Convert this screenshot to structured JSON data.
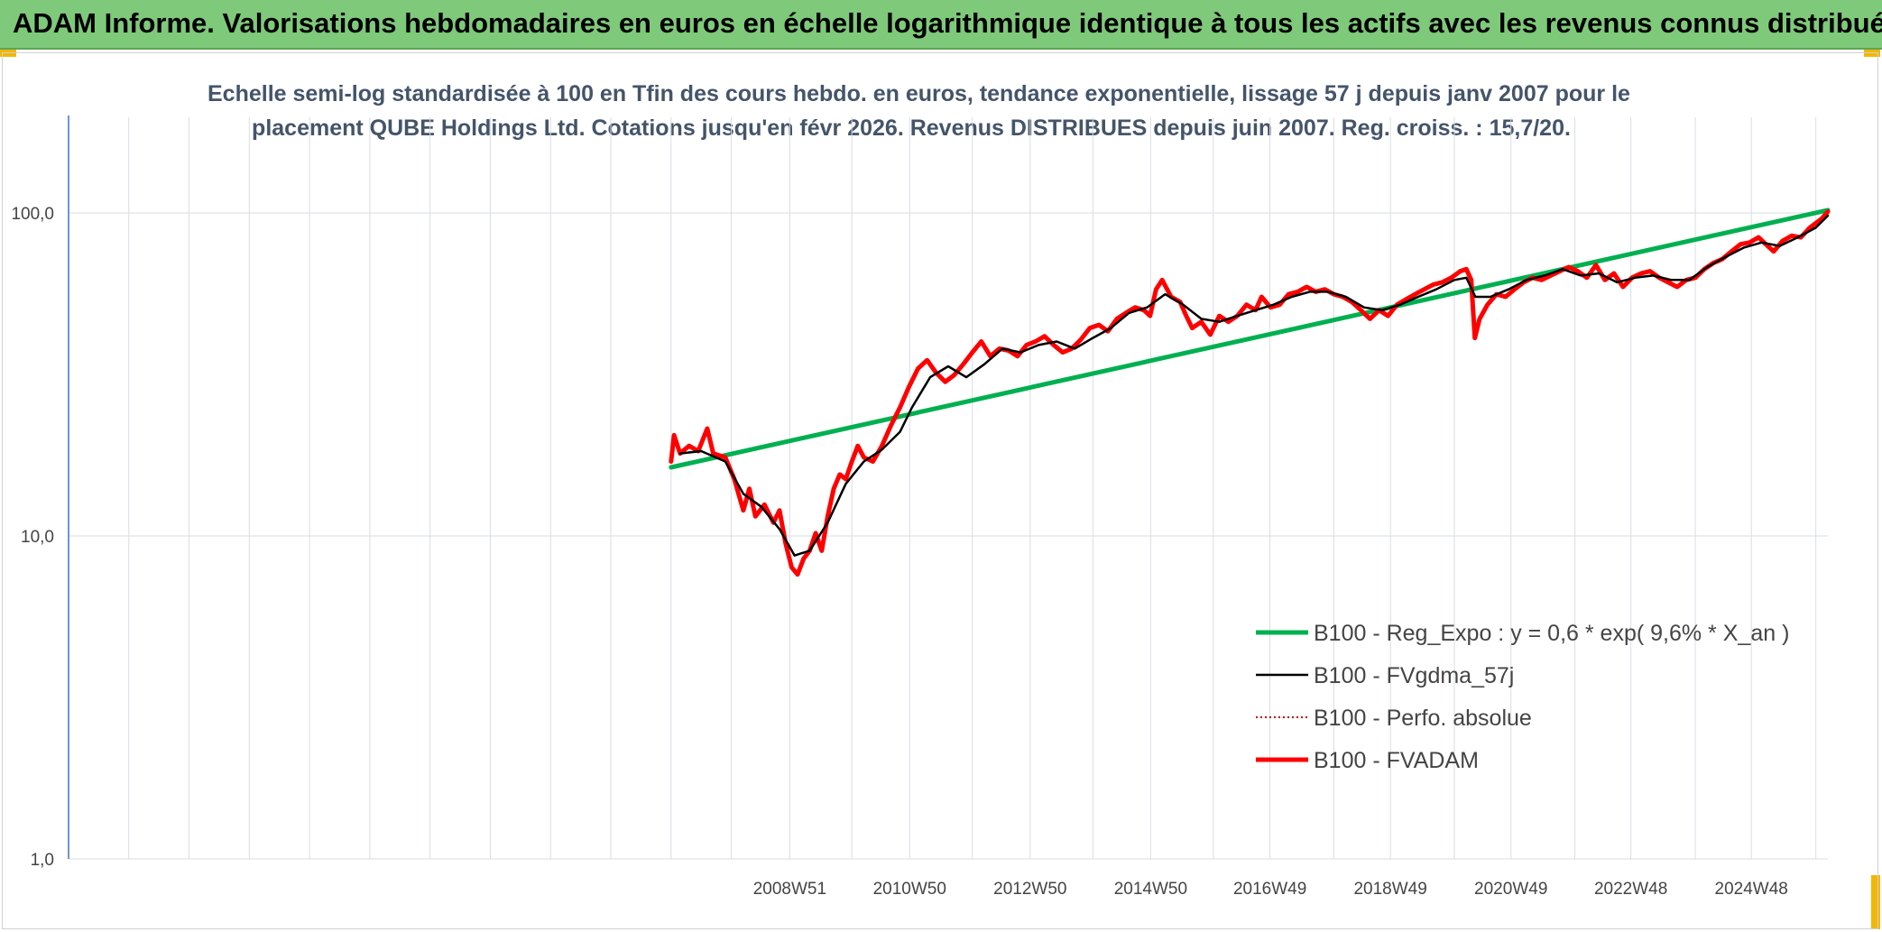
{
  "banner": {
    "title": "ADAM Informe. Valorisations hebdomadaires en euros en échelle logarithmique identique à tous les actifs avec les revenus connus distribués",
    "bg_color": "#7fc97a",
    "accent_corner_color": "#f2b705"
  },
  "chart_data": {
    "type": "line",
    "subtitle_lines": [
      "Echelle semi-log standardisée à 100 en Tfin des cours hebdo. en euros, tendance exponentielle, lissage 57 j depuis janv 2007 pour le",
      "placement QUBE Holdings Ltd. Cotations jusqu'en févr 2026. Revenus DISTRIBUES depuis juin 2007. Reg. croiss. : 15,7/20."
    ],
    "y_scale": "log",
    "ylim": [
      1,
      100
    ],
    "y_ticks": [
      {
        "value": 100,
        "label": "100,0"
      },
      {
        "value": 10,
        "label": "10,0"
      },
      {
        "value": 1,
        "label": "1,0"
      }
    ],
    "x_range": [
      1997.0,
      2026.2
    ],
    "x_ticks": [
      {
        "value": 2008.97,
        "label": "2008W51"
      },
      {
        "value": 2010.96,
        "label": "2010W50"
      },
      {
        "value": 2012.96,
        "label": "2012W50"
      },
      {
        "value": 2014.96,
        "label": "2014W50"
      },
      {
        "value": 2016.94,
        "label": "2016W49"
      },
      {
        "value": 2018.94,
        "label": "2018W49"
      },
      {
        "value": 2020.94,
        "label": "2020W49"
      },
      {
        "value": 2022.93,
        "label": "2022W48"
      },
      {
        "value": 2024.93,
        "label": "2024W48"
      }
    ],
    "x_gridlines": [
      1998.0,
      1999.0,
      2000.0,
      2001.0,
      2002.0,
      2003.0,
      2004.0,
      2005.0,
      2006.0,
      2007.0,
      2008.0,
      2008.97,
      2010.0,
      2010.96,
      2012.0,
      2012.96,
      2014.0,
      2014.96,
      2016.0,
      2016.94,
      2018.0,
      2018.94,
      2020.0,
      2020.94,
      2022.0,
      2022.93,
      2024.0,
      2024.93,
      2026.0
    ],
    "grid": true,
    "legend_position": "bottom-right",
    "series": [
      {
        "name": "B100 - Reg_Expo : y = 0,6 * exp( 9,6% *  X_an )",
        "color": "#00b050",
        "style": "solid-thick",
        "points": [
          [
            2007.0,
            16.3
          ],
          [
            2026.2,
            102.0
          ]
        ]
      },
      {
        "name": "B100 - FVgdma_57j",
        "color": "#000000",
        "style": "solid-thin",
        "points": [
          [
            2007.15,
            18.0
          ],
          [
            2007.5,
            18.3
          ],
          [
            2007.9,
            17.0
          ],
          [
            2008.2,
            13.5
          ],
          [
            2008.5,
            12.3
          ],
          [
            2008.8,
            10.5
          ],
          [
            2009.05,
            8.7
          ],
          [
            2009.3,
            9.0
          ],
          [
            2009.6,
            11.0
          ],
          [
            2009.9,
            14.5
          ],
          [
            2010.2,
            17.0
          ],
          [
            2010.5,
            18.5
          ],
          [
            2010.8,
            21.0
          ],
          [
            2011.0,
            25.0
          ],
          [
            2011.3,
            31.0
          ],
          [
            2011.6,
            33.5
          ],
          [
            2011.9,
            31.0
          ],
          [
            2012.2,
            34.0
          ],
          [
            2012.5,
            38.0
          ],
          [
            2012.8,
            37.0
          ],
          [
            2013.1,
            39.0
          ],
          [
            2013.4,
            40.0
          ],
          [
            2013.7,
            38.0
          ],
          [
            2014.0,
            41.0
          ],
          [
            2014.3,
            44.0
          ],
          [
            2014.6,
            49.0
          ],
          [
            2014.9,
            51.0
          ],
          [
            2015.2,
            56.0
          ],
          [
            2015.5,
            52.0
          ],
          [
            2015.8,
            47.0
          ],
          [
            2016.1,
            46.0
          ],
          [
            2016.4,
            48.0
          ],
          [
            2016.7,
            50.0
          ],
          [
            2017.0,
            52.0
          ],
          [
            2017.3,
            55.0
          ],
          [
            2017.6,
            57.0
          ],
          [
            2017.9,
            57.0
          ],
          [
            2018.2,
            55.0
          ],
          [
            2018.5,
            51.0
          ],
          [
            2018.8,
            50.0
          ],
          [
            2019.1,
            52.0
          ],
          [
            2019.4,
            55.0
          ],
          [
            2019.7,
            58.0
          ],
          [
            2020.0,
            62.0
          ],
          [
            2020.2,
            63.0
          ],
          [
            2020.35,
            55.0
          ],
          [
            2020.6,
            55.0
          ],
          [
            2020.9,
            58.0
          ],
          [
            2021.2,
            62.0
          ],
          [
            2021.5,
            64.0
          ],
          [
            2021.8,
            67.0
          ],
          [
            2022.1,
            64.0
          ],
          [
            2022.4,
            65.0
          ],
          [
            2022.7,
            61.0
          ],
          [
            2023.0,
            63.0
          ],
          [
            2023.3,
            64.0
          ],
          [
            2023.6,
            62.0
          ],
          [
            2023.9,
            62.0
          ],
          [
            2024.2,
            68.0
          ],
          [
            2024.5,
            73.0
          ],
          [
            2024.8,
            78.0
          ],
          [
            2025.1,
            81.0
          ],
          [
            2025.4,
            79.0
          ],
          [
            2025.7,
            84.0
          ],
          [
            2026.0,
            90.0
          ],
          [
            2026.2,
            98.0
          ]
        ]
      },
      {
        "name": "B100 - Perfo. absolue",
        "color": "#c00000",
        "style": "dotted",
        "points": []
      },
      {
        "name": "B100 - FVADAM",
        "color": "#ff0000",
        "style": "solid-thick",
        "points": [
          [
            2007.0,
            17.0
          ],
          [
            2007.05,
            20.5
          ],
          [
            2007.15,
            18.0
          ],
          [
            2007.3,
            19.0
          ],
          [
            2007.45,
            18.3
          ],
          [
            2007.6,
            21.5
          ],
          [
            2007.7,
            18.0
          ],
          [
            2007.9,
            17.5
          ],
          [
            2008.05,
            15.0
          ],
          [
            2008.2,
            12.0
          ],
          [
            2008.3,
            14.0
          ],
          [
            2008.4,
            11.5
          ],
          [
            2008.55,
            12.5
          ],
          [
            2008.7,
            11.0
          ],
          [
            2008.8,
            12.0
          ],
          [
            2008.9,
            9.5
          ],
          [
            2009.0,
            8.0
          ],
          [
            2009.1,
            7.6
          ],
          [
            2009.2,
            8.5
          ],
          [
            2009.3,
            9.0
          ],
          [
            2009.4,
            10.2
          ],
          [
            2009.5,
            9.0
          ],
          [
            2009.6,
            11.5
          ],
          [
            2009.7,
            14.0
          ],
          [
            2009.8,
            15.5
          ],
          [
            2009.9,
            15.0
          ],
          [
            2010.0,
            17.0
          ],
          [
            2010.1,
            19.0
          ],
          [
            2010.2,
            17.5
          ],
          [
            2010.35,
            17.0
          ],
          [
            2010.5,
            19.0
          ],
          [
            2010.65,
            22.0
          ],
          [
            2010.8,
            25.0
          ],
          [
            2010.95,
            29.0
          ],
          [
            2011.1,
            33.0
          ],
          [
            2011.25,
            35.0
          ],
          [
            2011.4,
            32.0
          ],
          [
            2011.55,
            30.0
          ],
          [
            2011.7,
            31.5
          ],
          [
            2011.85,
            34.0
          ],
          [
            2012.0,
            37.0
          ],
          [
            2012.15,
            40.0
          ],
          [
            2012.3,
            36.0
          ],
          [
            2012.45,
            38.0
          ],
          [
            2012.6,
            37.5
          ],
          [
            2012.75,
            36.0
          ],
          [
            2012.9,
            39.0
          ],
          [
            2013.05,
            40.0
          ],
          [
            2013.2,
            41.5
          ],
          [
            2013.35,
            39.0
          ],
          [
            2013.5,
            37.0
          ],
          [
            2013.65,
            38.0
          ],
          [
            2013.8,
            40.5
          ],
          [
            2013.95,
            44.0
          ],
          [
            2014.1,
            45.0
          ],
          [
            2014.25,
            43.0
          ],
          [
            2014.4,
            47.0
          ],
          [
            2014.55,
            49.0
          ],
          [
            2014.7,
            51.0
          ],
          [
            2014.85,
            50.0
          ],
          [
            2014.95,
            48.0
          ],
          [
            2015.05,
            58.0
          ],
          [
            2015.15,
            62.0
          ],
          [
            2015.3,
            55.0
          ],
          [
            2015.45,
            53.0
          ],
          [
            2015.55,
            48.0
          ],
          [
            2015.65,
            44.0
          ],
          [
            2015.8,
            46.0
          ],
          [
            2015.95,
            42.0
          ],
          [
            2016.1,
            48.0
          ],
          [
            2016.25,
            46.0
          ],
          [
            2016.4,
            48.0
          ],
          [
            2016.55,
            52.0
          ],
          [
            2016.7,
            50.0
          ],
          [
            2016.8,
            55.0
          ],
          [
            2016.95,
            51.0
          ],
          [
            2017.1,
            52.0
          ],
          [
            2017.25,
            56.0
          ],
          [
            2017.4,
            57.0
          ],
          [
            2017.55,
            59.0
          ],
          [
            2017.7,
            57.0
          ],
          [
            2017.85,
            58.0
          ],
          [
            2018.0,
            56.0
          ],
          [
            2018.15,
            55.0
          ],
          [
            2018.3,
            53.0
          ],
          [
            2018.45,
            50.0
          ],
          [
            2018.6,
            47.0
          ],
          [
            2018.75,
            50.0
          ],
          [
            2018.9,
            48.0
          ],
          [
            2019.05,
            52.0
          ],
          [
            2019.2,
            54.0
          ],
          [
            2019.35,
            56.0
          ],
          [
            2019.5,
            58.0
          ],
          [
            2019.65,
            60.0
          ],
          [
            2019.8,
            61.0
          ],
          [
            2019.95,
            63.0
          ],
          [
            2020.1,
            66.0
          ],
          [
            2020.2,
            67.0
          ],
          [
            2020.28,
            62.0
          ],
          [
            2020.34,
            41.0
          ],
          [
            2020.42,
            47.0
          ],
          [
            2020.55,
            52.0
          ],
          [
            2020.7,
            56.0
          ],
          [
            2020.85,
            55.0
          ],
          [
            2021.0,
            58.0
          ],
          [
            2021.15,
            61.0
          ],
          [
            2021.3,
            63.0
          ],
          [
            2021.45,
            62.0
          ],
          [
            2021.6,
            64.0
          ],
          [
            2021.75,
            66.0
          ],
          [
            2021.9,
            68.0
          ],
          [
            2022.05,
            66.0
          ],
          [
            2022.2,
            63.0
          ],
          [
            2022.35,
            69.0
          ],
          [
            2022.5,
            62.0
          ],
          [
            2022.65,
            65.0
          ],
          [
            2022.8,
            59.0
          ],
          [
            2022.95,
            63.0
          ],
          [
            2023.1,
            65.0
          ],
          [
            2023.25,
            66.0
          ],
          [
            2023.4,
            63.0
          ],
          [
            2023.55,
            61.0
          ],
          [
            2023.7,
            59.0
          ],
          [
            2023.85,
            62.0
          ],
          [
            2024.0,
            63.0
          ],
          [
            2024.15,
            67.0
          ],
          [
            2024.3,
            70.0
          ],
          [
            2024.45,
            72.0
          ],
          [
            2024.6,
            76.0
          ],
          [
            2024.75,
            80.0
          ],
          [
            2024.9,
            81.0
          ],
          [
            2025.05,
            84.0
          ],
          [
            2025.2,
            79.0
          ],
          [
            2025.3,
            76.0
          ],
          [
            2025.45,
            82.0
          ],
          [
            2025.6,
            85.0
          ],
          [
            2025.75,
            84.0
          ],
          [
            2025.9,
            90.0
          ],
          [
            2026.0,
            93.0
          ],
          [
            2026.1,
            96.0
          ],
          [
            2026.2,
            101.0
          ]
        ]
      }
    ]
  }
}
